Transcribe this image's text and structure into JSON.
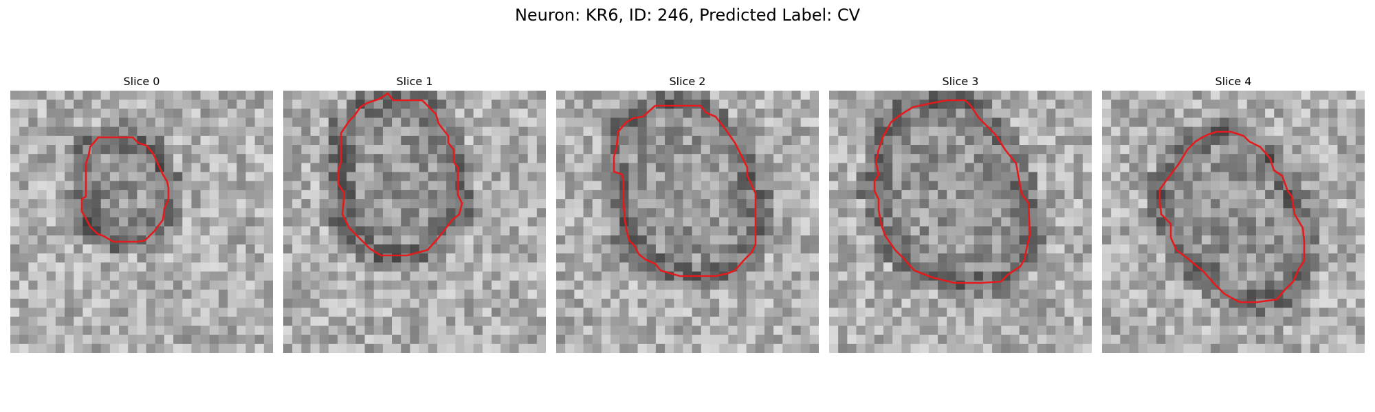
{
  "figure": {
    "title": "Neuron: KR6, ID: 246, Predicted Label: CV",
    "contour_color": "#e41a1c",
    "panels": [
      {
        "title": "Slice 0",
        "image": "grayscale-em-patch-neuron-cross-section-icon",
        "seed": 11
      },
      {
        "title": "Slice 1",
        "image": "grayscale-em-patch-neuron-cross-section-icon",
        "seed": 23
      },
      {
        "title": "Slice 2",
        "image": "grayscale-em-patch-neuron-cross-section-icon",
        "seed": 37
      },
      {
        "title": "Slice 3",
        "image": "grayscale-em-patch-neuron-cross-section-icon",
        "seed": 53
      },
      {
        "title": "Slice 4",
        "image": "grayscale-em-patch-neuron-cross-section-icon",
        "seed": 71
      }
    ]
  }
}
